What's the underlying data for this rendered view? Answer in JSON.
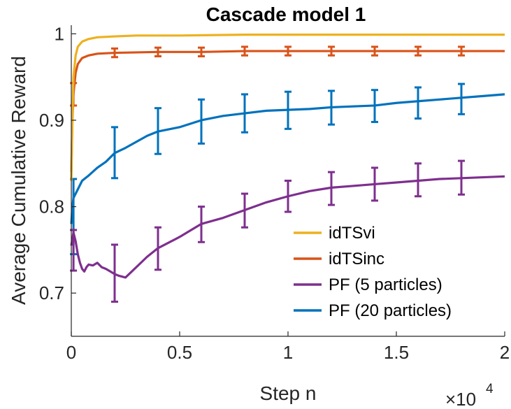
{
  "chart_data": {
    "type": "line",
    "title": "Cascade model 1",
    "xlabel": "Step n",
    "ylabel": "Average Cumulative Reward",
    "x_exponent_base": "×10",
    "x_exponent_power": "4",
    "xlim": [
      0,
      2
    ],
    "ylim": [
      0.65,
      1.01
    ],
    "x_ticks": [
      0,
      0.5,
      1,
      1.5,
      2
    ],
    "x_tick_labels": [
      "0",
      "0.5",
      "1",
      "1.5",
      "2"
    ],
    "y_ticks": [
      0.7,
      0.8,
      0.9,
      1.0
    ],
    "y_tick_labels": [
      "0.7",
      "0.8",
      "0.9",
      "1"
    ],
    "legend_position": "bottom-right",
    "series": [
      {
        "name": "idTSvi",
        "color": "#EDB120",
        "x": [
          0,
          0.005,
          0.01,
          0.02,
          0.03,
          0.05,
          0.08,
          0.12,
          0.2,
          0.3,
          0.5,
          0.8,
          1.0,
          1.5,
          2.0
        ],
        "y": [
          0.83,
          0.9,
          0.95,
          0.975,
          0.985,
          0.991,
          0.994,
          0.996,
          0.997,
          0.998,
          0.998,
          0.999,
          0.999,
          0.999,
          0.999
        ],
        "errorbars": []
      },
      {
        "name": "idTSinc",
        "color": "#D95319",
        "x": [
          0,
          0.005,
          0.01,
          0.02,
          0.03,
          0.05,
          0.08,
          0.12,
          0.2,
          0.4,
          0.6,
          0.8,
          1.0,
          1.2,
          1.4,
          1.6,
          1.8,
          2.0
        ],
        "y": [
          0.84,
          0.9,
          0.93,
          0.955,
          0.965,
          0.972,
          0.975,
          0.977,
          0.978,
          0.979,
          0.979,
          0.98,
          0.98,
          0.98,
          0.98,
          0.98,
          0.98,
          0.98
        ],
        "errorbars": [
          {
            "x": 0.01,
            "low": 0.917,
            "high": 0.943
          },
          {
            "x": 0.2,
            "low": 0.973,
            "high": 0.983
          },
          {
            "x": 0.4,
            "low": 0.974,
            "high": 0.984
          },
          {
            "x": 0.6,
            "low": 0.974,
            "high": 0.984
          },
          {
            "x": 0.8,
            "low": 0.975,
            "high": 0.985
          },
          {
            "x": 1.0,
            "low": 0.975,
            "high": 0.985
          },
          {
            "x": 1.2,
            "low": 0.975,
            "high": 0.985
          },
          {
            "x": 1.4,
            "low": 0.975,
            "high": 0.985
          },
          {
            "x": 1.6,
            "low": 0.975,
            "high": 0.985
          },
          {
            "x": 1.8,
            "low": 0.975,
            "high": 0.985
          }
        ]
      },
      {
        "name": "PF (5 particles)",
        "color": "#7E2F8E",
        "x": [
          0,
          0.01,
          0.02,
          0.03,
          0.04,
          0.05,
          0.06,
          0.07,
          0.08,
          0.1,
          0.12,
          0.14,
          0.16,
          0.18,
          0.2,
          0.22,
          0.25,
          0.3,
          0.35,
          0.4,
          0.5,
          0.6,
          0.7,
          0.8,
          0.9,
          1.0,
          1.1,
          1.2,
          1.3,
          1.4,
          1.5,
          1.6,
          1.7,
          1.8,
          1.9,
          2.0
        ],
        "y": [
          0.755,
          0.77,
          0.76,
          0.745,
          0.735,
          0.728,
          0.725,
          0.73,
          0.733,
          0.732,
          0.735,
          0.73,
          0.728,
          0.725,
          0.722,
          0.72,
          0.718,
          0.73,
          0.742,
          0.752,
          0.765,
          0.78,
          0.787,
          0.796,
          0.805,
          0.812,
          0.818,
          0.822,
          0.824,
          0.826,
          0.828,
          0.83,
          0.832,
          0.833,
          0.834,
          0.835
        ],
        "errorbars": [
          {
            "x": 0.01,
            "low": 0.726,
            "high": 0.773
          },
          {
            "x": 0.2,
            "low": 0.69,
            "high": 0.756
          },
          {
            "x": 0.4,
            "low": 0.727,
            "high": 0.776
          },
          {
            "x": 0.6,
            "low": 0.759,
            "high": 0.8
          },
          {
            "x": 0.8,
            "low": 0.776,
            "high": 0.815
          },
          {
            "x": 1.0,
            "low": 0.794,
            "high": 0.83
          },
          {
            "x": 1.2,
            "low": 0.802,
            "high": 0.84
          },
          {
            "x": 1.4,
            "low": 0.807,
            "high": 0.845
          },
          {
            "x": 1.6,
            "low": 0.812,
            "high": 0.85
          },
          {
            "x": 1.8,
            "low": 0.814,
            "high": 0.853
          }
        ]
      },
      {
        "name": "PF (20 particles)",
        "color": "#0072BD",
        "x": [
          0,
          0.005,
          0.01,
          0.02,
          0.03,
          0.05,
          0.08,
          0.12,
          0.16,
          0.2,
          0.25,
          0.3,
          0.35,
          0.4,
          0.5,
          0.6,
          0.7,
          0.8,
          0.9,
          1.0,
          1.1,
          1.2,
          1.3,
          1.4,
          1.5,
          1.6,
          1.7,
          1.8,
          1.9,
          2.0
        ],
        "y": [
          0.78,
          0.8,
          0.81,
          0.815,
          0.82,
          0.83,
          0.836,
          0.845,
          0.852,
          0.862,
          0.868,
          0.875,
          0.882,
          0.887,
          0.892,
          0.9,
          0.905,
          0.908,
          0.911,
          0.912,
          0.913,
          0.915,
          0.916,
          0.917,
          0.92,
          0.922,
          0.924,
          0.926,
          0.928,
          0.93
        ],
        "errorbars": [
          {
            "x": 0.01,
            "low": 0.745,
            "high": 0.832
          },
          {
            "x": 0.2,
            "low": 0.833,
            "high": 0.892
          },
          {
            "x": 0.4,
            "low": 0.861,
            "high": 0.914
          },
          {
            "x": 0.6,
            "low": 0.873,
            "high": 0.924
          },
          {
            "x": 0.8,
            "low": 0.886,
            "high": 0.93
          },
          {
            "x": 1.0,
            "low": 0.89,
            "high": 0.933
          },
          {
            "x": 1.2,
            "low": 0.895,
            "high": 0.934
          },
          {
            "x": 1.4,
            "low": 0.898,
            "high": 0.935
          },
          {
            "x": 1.6,
            "low": 0.902,
            "high": 0.938
          },
          {
            "x": 1.8,
            "low": 0.907,
            "high": 0.942
          }
        ]
      }
    ]
  }
}
